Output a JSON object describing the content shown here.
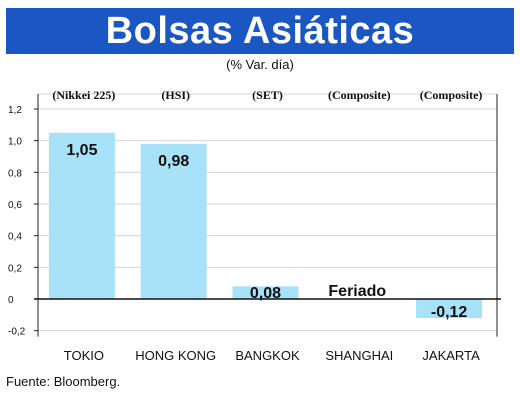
{
  "header": {
    "title": "Bolsas Asiáticas",
    "subtitle": "(% Var. día)"
  },
  "footer": {
    "source": "Fuente: Bloomberg."
  },
  "colors": {
    "title_bg": "#1a57c2",
    "bar": "#a8e2f8",
    "grid": "#d4d4d4"
  },
  "chart_data": {
    "type": "bar",
    "title": "Bolsas Asiáticas",
    "subtitle": "(% Var. día)",
    "categories": [
      "TOKIO",
      "HONG KONG",
      "BANGKOK",
      "SHANGHAI",
      "JAKARTA"
    ],
    "indices": [
      "(Nikkei 225)",
      "(HSI)",
      "(SET)",
      "(Composite)",
      "(Composite)"
    ],
    "values": [
      1.05,
      0.98,
      0.08,
      null,
      -0.12
    ],
    "data_labels": [
      "1,05",
      "0,98",
      "0,08",
      "Feriado",
      "-0,12"
    ],
    "yticks": [
      -0.2,
      0,
      0.2,
      0.4,
      0.6,
      0.8,
      1.0,
      1.2
    ],
    "ytick_labels": [
      "-0,2",
      "0",
      "0,2",
      "0,4",
      "0,6",
      "0,8",
      "1,0",
      "1,2"
    ],
    "ylim": [
      -0.2,
      1.2
    ],
    "grid": true,
    "legend": "none"
  }
}
